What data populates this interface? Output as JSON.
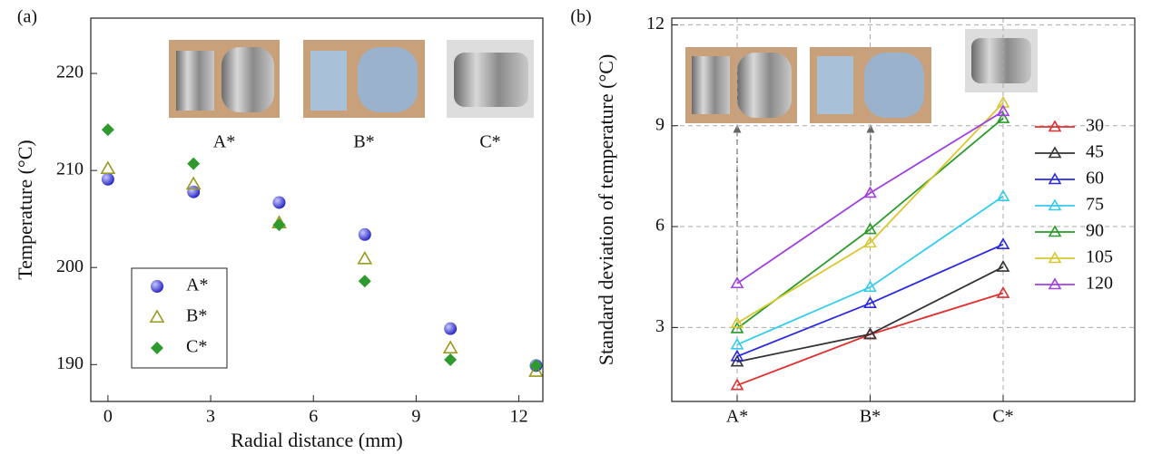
{
  "chart_data": [
    {
      "type": "scatter",
      "panel_label": "(a)",
      "x_label": "Radial distance (mm)",
      "y_label": "Temperature (°C)",
      "x": [
        0,
        2.5,
        5,
        7.5,
        10,
        12.5
      ],
      "xlim": [
        -0.5,
        12.7
      ],
      "xticks": [
        0,
        3,
        6,
        9,
        12
      ],
      "ylim": [
        186.2,
        225.7
      ],
      "yticks": [
        190,
        200,
        210,
        220
      ],
      "image_labels": [
        "A*",
        "B*",
        "C*"
      ],
      "legend": "lower left",
      "series": [
        {
          "name": "A*",
          "color": "#3a3ae8",
          "marker": "circle",
          "values": [
            209.1,
            207.8,
            206.7,
            203.4,
            193.7,
            189.9
          ]
        },
        {
          "name": "B*",
          "color": "#9a9a1e",
          "marker": "triangle",
          "values": [
            210.2,
            208.6,
            204.6,
            200.9,
            191.7,
            189.3
          ]
        },
        {
          "name": "C*",
          "color": "#2e9a2e",
          "marker": "diamond",
          "values": [
            214.2,
            210.7,
            204.4,
            198.6,
            190.5,
            189.9
          ]
        }
      ]
    },
    {
      "type": "line",
      "panel_label": "(b)",
      "y_label": "Standard deviation of temperature (°C)",
      "categories": [
        "A*",
        "B*",
        "C*"
      ],
      "ylim": [
        0.8,
        12.2
      ],
      "yticks": [
        3,
        6,
        9,
        12
      ],
      "grid": true,
      "legend": "right",
      "series": [
        {
          "name": "30",
          "color": "#e03030",
          "values": [
            1.28,
            2.79,
            4.02
          ]
        },
        {
          "name": "45",
          "color": "#333333",
          "values": [
            1.98,
            2.8,
            4.8
          ]
        },
        {
          "name": "60",
          "color": "#2a2ae0",
          "values": [
            2.14,
            3.72,
            5.47
          ]
        },
        {
          "name": "75",
          "color": "#33ccee",
          "values": [
            2.49,
            4.2,
            6.9
          ]
        },
        {
          "name": "90",
          "color": "#2a9a2a",
          "values": [
            2.97,
            5.92,
            9.22
          ]
        },
        {
          "name": "105",
          "color": "#d8c830",
          "values": [
            3.13,
            5.52,
            9.68
          ]
        },
        {
          "name": "120",
          "color": "#a040e0",
          "values": [
            4.31,
            7.0,
            9.43
          ]
        }
      ]
    }
  ]
}
